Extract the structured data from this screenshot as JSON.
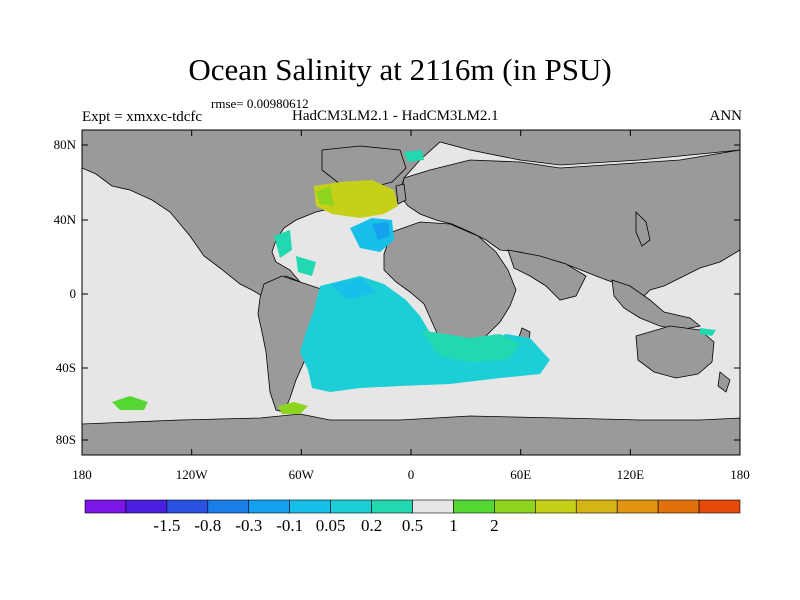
{
  "plot": {
    "title": "Ocean Salinity at 2116m (in PSU)",
    "rmse": "rmse= 0.00980612",
    "expt": "Expt = xmxxc-tdcfc",
    "models": "HadCM3LM2.1 - HadCM3LM2.1",
    "season": "ANN"
  },
  "axes": {
    "y_ticks": [
      "80N",
      "40N",
      "0",
      "40S",
      "80S"
    ],
    "x_ticks": [
      "180",
      "120W",
      "60W",
      "0",
      "60E",
      "120E",
      "180"
    ]
  },
  "colorbar": {
    "colors": [
      "#7a16e8",
      "#4a1fe0",
      "#2a52e0",
      "#1a7ee8",
      "#14a2ee",
      "#18bfe8",
      "#1ccfd6",
      "#22d8b0",
      "#e6e6e6",
      "#56d632",
      "#8cd41e",
      "#c6d018",
      "#d6b414",
      "#e09410",
      "#e2700c",
      "#e64a0a"
    ],
    "labels": [
      "-1.5",
      "-0.8",
      "-0.3",
      "-0.1",
      "0.05",
      "0.2",
      "0.5",
      "1",
      "2"
    ]
  },
  "map_colors": {
    "land": "#9a9a9a",
    "ocean_neutral": "#e6e6e6",
    "coast": "#000000"
  }
}
